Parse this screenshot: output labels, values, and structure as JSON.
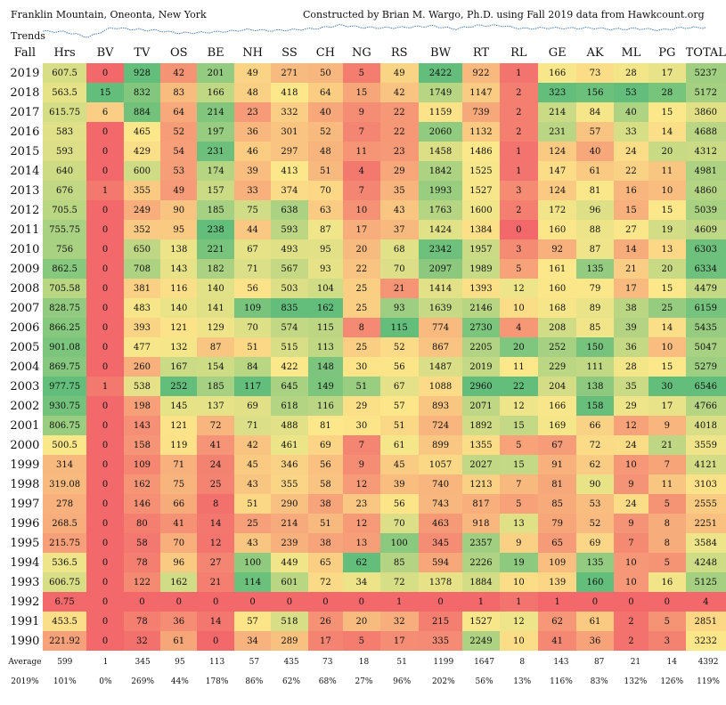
{
  "header": {
    "left": "Franklin Mountain, Oneonta, New York",
    "right": "Constructed by Brian M. Wargo, Ph.D. using Fall 2019 data from Hawkcount.org",
    "trends": "Trends"
  },
  "chart_data": {
    "type": "heatmap",
    "corner_label": "Fall",
    "columns": [
      "Hrs",
      "BV",
      "TV",
      "OS",
      "BE",
      "NH",
      "SS",
      "CH",
      "NG",
      "RS",
      "BW",
      "RT",
      "RL",
      "GE",
      "AK",
      "ML",
      "PG",
      "TOTAL"
    ],
    "rows": [
      {
        "year": "2019",
        "values": [
          "607.5",
          "0",
          "928",
          "42",
          "201",
          "49",
          "271",
          "50",
          "5",
          "49",
          "2422",
          "922",
          "1",
          "166",
          "73",
          "28",
          "17",
          "5237"
        ]
      },
      {
        "year": "2018",
        "values": [
          "563.5",
          "15",
          "832",
          "83",
          "166",
          "48",
          "418",
          "64",
          "15",
          "42",
          "1749",
          "1147",
          "2",
          "323",
          "156",
          "53",
          "28",
          "5172"
        ]
      },
      {
        "year": "2017",
        "values": [
          "615.75",
          "6",
          "884",
          "64",
          "214",
          "23",
          "332",
          "40",
          "9",
          "22",
          "1159",
          "739",
          "2",
          "214",
          "84",
          "40",
          "15",
          "3860"
        ]
      },
      {
        "year": "2016",
        "values": [
          "583",
          "0",
          "465",
          "52",
          "197",
          "36",
          "301",
          "52",
          "7",
          "22",
          "2060",
          "1132",
          "2",
          "231",
          "57",
          "33",
          "14",
          "4688"
        ]
      },
      {
        "year": "2015",
        "values": [
          "593",
          "0",
          "429",
          "54",
          "231",
          "46",
          "297",
          "48",
          "11",
          "23",
          "1458",
          "1486",
          "1",
          "124",
          "40",
          "24",
          "20",
          "4312"
        ]
      },
      {
        "year": "2014",
        "values": [
          "640",
          "0",
          "600",
          "53",
          "174",
          "39",
          "413",
          "51",
          "4",
          "29",
          "1842",
          "1525",
          "1",
          "147",
          "61",
          "22",
          "11",
          "4981"
        ]
      },
      {
        "year": "2013",
        "values": [
          "676",
          "1",
          "355",
          "49",
          "157",
          "33",
          "374",
          "70",
          "7",
          "35",
          "1993",
          "1527",
          "3",
          "124",
          "81",
          "16",
          "10",
          "4860"
        ]
      },
      {
        "year": "2012",
        "values": [
          "705.5",
          "0",
          "249",
          "90",
          "185",
          "75",
          "638",
          "63",
          "10",
          "43",
          "1763",
          "1600",
          "2",
          "172",
          "96",
          "15",
          "15",
          "5039"
        ]
      },
      {
        "year": "2011",
        "values": [
          "755.75",
          "0",
          "352",
          "95",
          "238",
          "44",
          "593",
          "87",
          "17",
          "37",
          "1424",
          "1384",
          "0",
          "160",
          "88",
          "27",
          "19",
          "4609"
        ]
      },
      {
        "year": "2010",
        "values": [
          "756",
          "0",
          "650",
          "138",
          "221",
          "67",
          "493",
          "95",
          "20",
          "68",
          "2342",
          "1957",
          "3",
          "92",
          "87",
          "14",
          "13",
          "6303"
        ]
      },
      {
        "year": "2009",
        "values": [
          "862.5",
          "0",
          "708",
          "143",
          "182",
          "71",
          "567",
          "93",
          "22",
          "70",
          "2097",
          "1989",
          "5",
          "161",
          "135",
          "21",
          "20",
          "6334"
        ]
      },
      {
        "year": "2008",
        "values": [
          "705.58",
          "0",
          "381",
          "116",
          "140",
          "56",
          "503",
          "104",
          "25",
          "21",
          "1414",
          "1393",
          "12",
          "160",
          "79",
          "17",
          "15",
          "4479"
        ]
      },
      {
        "year": "2007",
        "values": [
          "828.75",
          "0",
          "483",
          "140",
          "141",
          "109",
          "835",
          "162",
          "25",
          "93",
          "1639",
          "2146",
          "10",
          "168",
          "89",
          "38",
          "25",
          "6159"
        ]
      },
      {
        "year": "2006",
        "values": [
          "866.25",
          "0",
          "393",
          "121",
          "129",
          "70",
          "574",
          "115",
          "8",
          "115",
          "774",
          "2730",
          "4",
          "208",
          "85",
          "39",
          "14",
          "5435"
        ]
      },
      {
        "year": "2005",
        "values": [
          "901.08",
          "0",
          "477",
          "132",
          "87",
          "51",
          "515",
          "113",
          "25",
          "52",
          "867",
          "2205",
          "20",
          "252",
          "150",
          "36",
          "10",
          "5047"
        ]
      },
      {
        "year": "2004",
        "values": [
          "869.75",
          "0",
          "260",
          "167",
          "154",
          "84",
          "422",
          "148",
          "30",
          "56",
          "1487",
          "2019",
          "11",
          "229",
          "111",
          "28",
          "15",
          "5279"
        ]
      },
      {
        "year": "2003",
        "values": [
          "977.75",
          "1",
          "538",
          "252",
          "185",
          "117",
          "645",
          "149",
          "51",
          "67",
          "1088",
          "2960",
          "22",
          "204",
          "138",
          "35",
          "30",
          "6546"
        ]
      },
      {
        "year": "2002",
        "values": [
          "930.75",
          "0",
          "198",
          "145",
          "137",
          "69",
          "618",
          "116",
          "29",
          "57",
          "893",
          "2071",
          "12",
          "166",
          "158",
          "29",
          "17",
          "4766"
        ]
      },
      {
        "year": "2001",
        "values": [
          "806.75",
          "0",
          "143",
          "121",
          "72",
          "71",
          "488",
          "81",
          "30",
          "51",
          "724",
          "1892",
          "15",
          "169",
          "66",
          "12",
          "9",
          "4018"
        ]
      },
      {
        "year": "2000",
        "values": [
          "500.5",
          "0",
          "158",
          "119",
          "41",
          "42",
          "461",
          "69",
          "7",
          "61",
          "899",
          "1355",
          "5",
          "67",
          "72",
          "24",
          "21",
          "3559"
        ]
      },
      {
        "year": "1999",
        "values": [
          "314",
          "0",
          "109",
          "71",
          "24",
          "45",
          "346",
          "56",
          "9",
          "45",
          "1057",
          "2027",
          "15",
          "91",
          "62",
          "10",
          "7",
          "4121"
        ]
      },
      {
        "year": "1998",
        "values": [
          "319.08",
          "0",
          "162",
          "75",
          "25",
          "43",
          "355",
          "58",
          "12",
          "39",
          "740",
          "1213",
          "7",
          "81",
          "90",
          "9",
          "11",
          "3103"
        ]
      },
      {
        "year": "1997",
        "values": [
          "278",
          "0",
          "146",
          "66",
          "8",
          "51",
          "290",
          "38",
          "23",
          "56",
          "743",
          "817",
          "5",
          "85",
          "53",
          "24",
          "5",
          "2555"
        ]
      },
      {
        "year": "1996",
        "values": [
          "268.5",
          "0",
          "80",
          "41",
          "14",
          "25",
          "214",
          "51",
          "12",
          "70",
          "463",
          "918",
          "13",
          "79",
          "52",
          "9",
          "8",
          "2251"
        ]
      },
      {
        "year": "1995",
        "values": [
          "215.75",
          "0",
          "58",
          "70",
          "12",
          "43",
          "239",
          "38",
          "13",
          "100",
          "345",
          "2357",
          "9",
          "65",
          "69",
          "7",
          "8",
          "3584"
        ]
      },
      {
        "year": "1994",
        "values": [
          "536.5",
          "0",
          "78",
          "96",
          "27",
          "100",
          "449",
          "65",
          "62",
          "85",
          "594",
          "2226",
          "19",
          "109",
          "135",
          "10",
          "5",
          "4248"
        ]
      },
      {
        "year": "1993",
        "values": [
          "606.75",
          "0",
          "122",
          "162",
          "21",
          "114",
          "601",
          "72",
          "34",
          "72",
          "1378",
          "1884",
          "10",
          "139",
          "160",
          "10",
          "16",
          "5125"
        ]
      },
      {
        "year": "1992",
        "values": [
          "6.75",
          "0",
          "0",
          "0",
          "0",
          "0",
          "0",
          "0",
          "0",
          "1",
          "0",
          "1",
          "1",
          "1",
          "0",
          "0",
          "0",
          "4"
        ]
      },
      {
        "year": "1991",
        "values": [
          "453.5",
          "0",
          "78",
          "36",
          "14",
          "57",
          "518",
          "26",
          "20",
          "32",
          "215",
          "1527",
          "12",
          "62",
          "61",
          "2",
          "5",
          "2851"
        ]
      },
      {
        "year": "1990",
        "values": [
          "221.92",
          "0",
          "32",
          "61",
          "0",
          "34",
          "289",
          "17",
          "5",
          "17",
          "335",
          "2249",
          "10",
          "41",
          "36",
          "2",
          "3",
          "3232"
        ]
      }
    ],
    "summary": [
      {
        "label": "Average",
        "values": [
          "599",
          "1",
          "345",
          "95",
          "113",
          "57",
          "435",
          "73",
          "18",
          "51",
          "1199",
          "1647",
          "8",
          "143",
          "87",
          "21",
          "14",
          "4392"
        ]
      },
      {
        "label": "2019%",
        "values": [
          "101%",
          "0%",
          "269%",
          "44%",
          "178%",
          "86%",
          "62%",
          "68%",
          "27%",
          "96%",
          "202%",
          "56%",
          "13%",
          "116%",
          "83%",
          "132%",
          "126%",
          "119%"
        ]
      }
    ],
    "colors": {
      "low": "#f2686b",
      "mid": "#fce88a",
      "high": "#63be7b"
    }
  }
}
